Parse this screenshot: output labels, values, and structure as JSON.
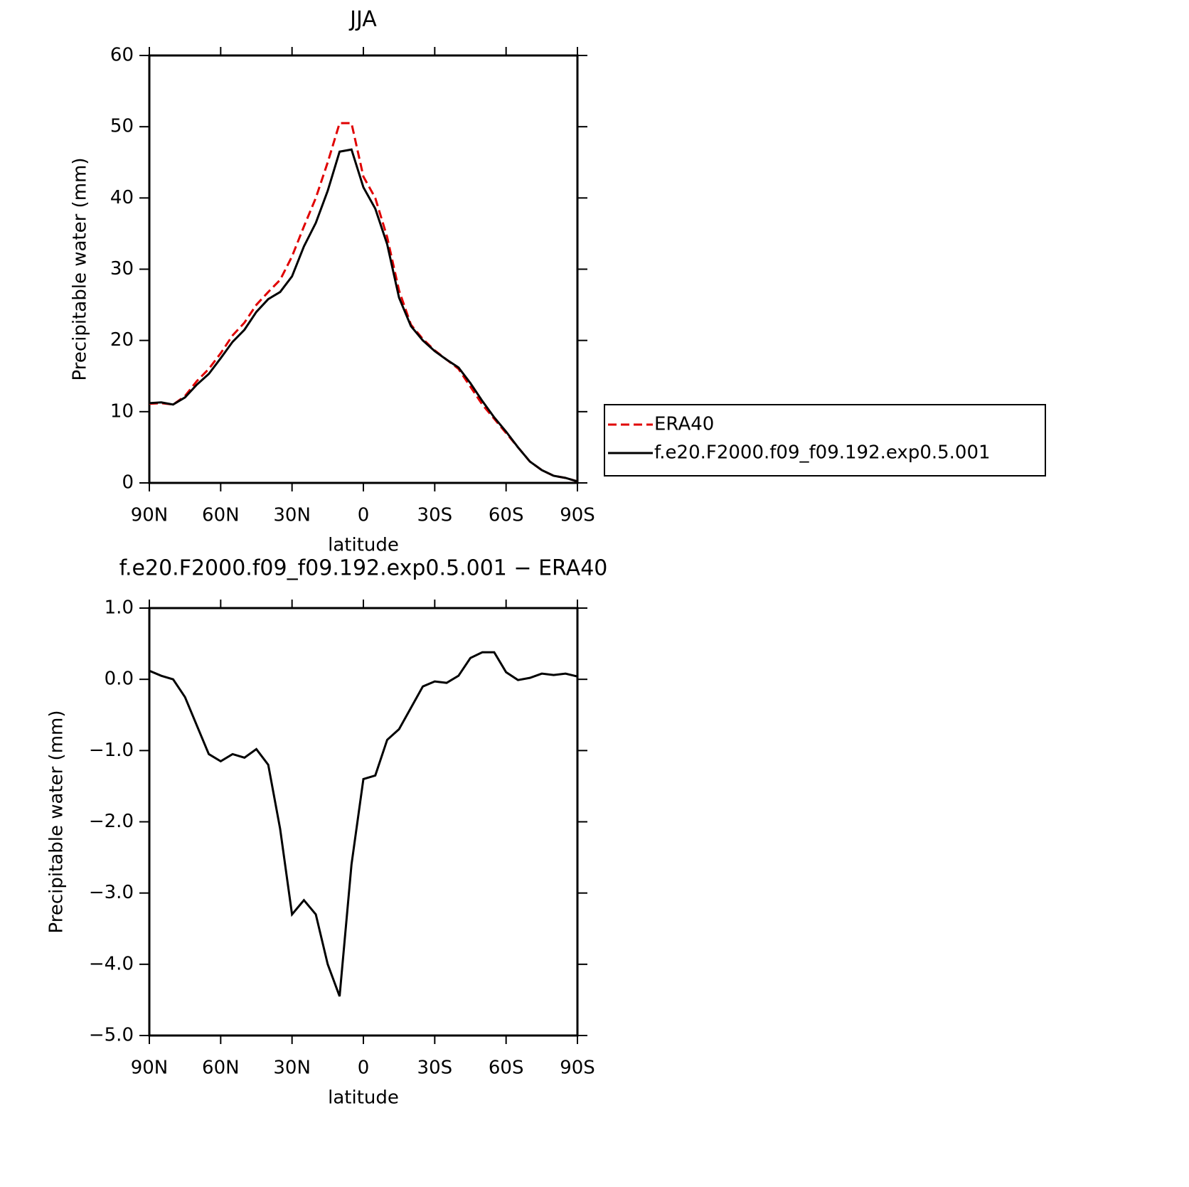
{
  "chart_data": [
    {
      "type": "line",
      "title": "JJA",
      "xlabel": "latitude",
      "ylabel": "Precipitable water (mm)",
      "x": [
        90,
        85,
        80,
        75,
        70,
        65,
        60,
        55,
        50,
        45,
        40,
        35,
        30,
        25,
        20,
        15,
        10,
        5,
        0,
        -5,
        -10,
        -15,
        -20,
        -25,
        -30,
        -35,
        -40,
        -45,
        -50,
        -55,
        -60,
        -65,
        -70,
        -75,
        -80,
        -85,
        -90
      ],
      "series": [
        {
          "name": "ERA40",
          "color": "#e00000",
          "style": "dashed",
          "values": [
            11.1,
            11.2,
            11.0,
            12.2,
            14.3,
            16.0,
            18.2,
            20.7,
            22.5,
            25.0,
            26.8,
            28.5,
            31.8,
            36.0,
            40.0,
            45.0,
            50.5,
            50.5,
            43.0,
            40.0,
            34.5,
            27.0,
            22.2,
            20.2,
            18.6,
            17.3,
            16.0,
            13.5,
            11.0,
            9.0,
            7.0,
            5.0,
            3.0,
            1.8,
            1.0,
            0.7,
            0.2
          ]
        },
        {
          "name": "f.e20.F2000.f09_f09.192.exp0.5.001",
          "color": "#000000",
          "style": "solid",
          "values": [
            11.2,
            11.3,
            11.0,
            12.0,
            13.8,
            15.3,
            17.5,
            19.8,
            21.5,
            24.0,
            25.8,
            26.8,
            29.0,
            33.2,
            36.5,
            41.0,
            46.5,
            46.8,
            41.5,
            38.5,
            33.5,
            26.0,
            22.0,
            20.0,
            18.5,
            17.3,
            16.2,
            14.0,
            11.5,
            9.2,
            7.2,
            5.0,
            3.0,
            1.8,
            1.0,
            0.7,
            0.2
          ]
        }
      ],
      "xlim": [
        90,
        -90
      ],
      "xticks": [
        {
          "value": 90,
          "label": "90N"
        },
        {
          "value": 60,
          "label": "60N"
        },
        {
          "value": 30,
          "label": "30N"
        },
        0,
        {
          "value": -30,
          "label": "30S"
        },
        {
          "value": -60,
          "label": "60S"
        },
        {
          "value": -90,
          "label": "90S"
        }
      ],
      "ylim": [
        0,
        60
      ],
      "yticks": [
        0,
        10,
        20,
        30,
        40,
        50,
        60
      ],
      "legend": "right"
    },
    {
      "type": "line",
      "title": "f.e20.F2000.f09_f09.192.exp0.5.001 − ERA40",
      "xlabel": "latitude",
      "ylabel": "Precipitable water (mm)",
      "x": [
        90,
        85,
        80,
        75,
        70,
        65,
        60,
        55,
        50,
        45,
        40,
        35,
        30,
        25,
        20,
        15,
        10,
        5,
        0,
        -5,
        -10,
        -15,
        -20,
        -25,
        -30,
        -35,
        -40,
        -45,
        -50,
        -55,
        -60,
        -65,
        -70,
        -75,
        -80,
        -85,
        -90
      ],
      "values": [
        0.12,
        0.05,
        0.0,
        -0.25,
        -0.65,
        -1.05,
        -1.15,
        -1.05,
        -1.1,
        -0.98,
        -1.2,
        -2.1,
        -3.3,
        -3.1,
        -3.3,
        -4.0,
        -4.45,
        -2.6,
        -1.4,
        -1.35,
        -0.85,
        -0.7,
        -0.4,
        -0.1,
        -0.03,
        -0.05,
        0.05,
        0.3,
        0.38,
        0.38,
        0.1,
        -0.01,
        0.02,
        0.08,
        0.06,
        0.08,
        0.04
      ],
      "color": "#000000",
      "style": "solid",
      "xlim": [
        90,
        -90
      ],
      "xticks": [
        {
          "value": 90,
          "label": "90N"
        },
        {
          "value": 60,
          "label": "60N"
        },
        {
          "value": 30,
          "label": "30N"
        },
        0,
        {
          "value": -30,
          "label": "30S"
        },
        {
          "value": -60,
          "label": "60S"
        },
        {
          "value": -90,
          "label": "90S"
        }
      ],
      "ylim": [
        -5,
        1
      ],
      "yticks": [
        {
          "value": 1,
          "label": "1.0"
        },
        {
          "value": 0,
          "label": "0.0"
        },
        {
          "value": -1,
          "label": "−1.0"
        },
        {
          "value": -2,
          "label": "−2.0"
        },
        {
          "value": -3,
          "label": "−3.0"
        },
        {
          "value": -4,
          "label": "−4.0"
        },
        {
          "value": -5,
          "label": "−5.0"
        }
      ]
    }
  ]
}
